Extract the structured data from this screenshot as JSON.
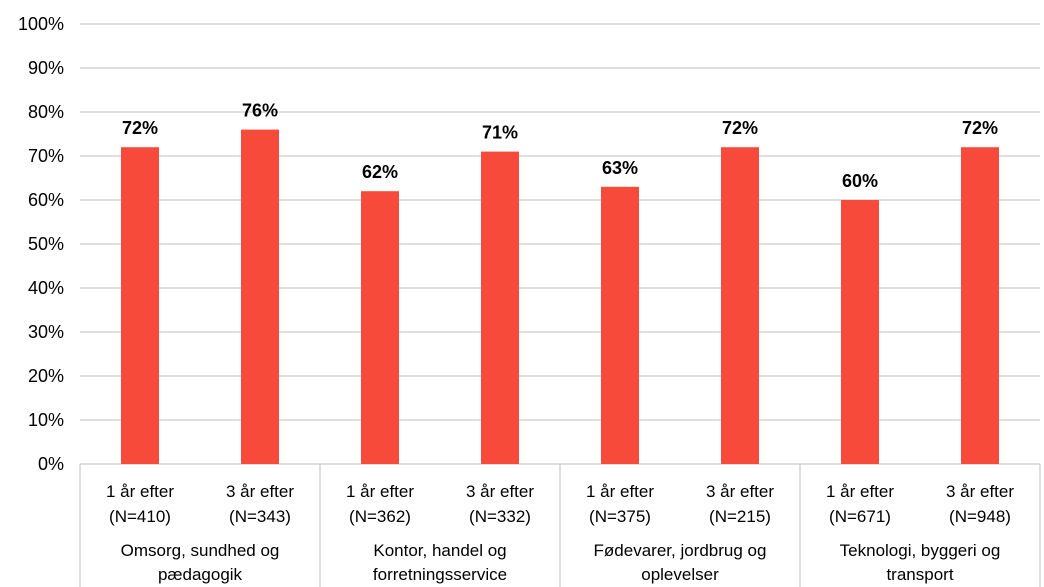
{
  "chart_data": {
    "type": "bar",
    "ylim": [
      0,
      100
    ],
    "y_ticks": [
      "0%",
      "10%",
      "20%",
      "30%",
      "40%",
      "50%",
      "60%",
      "70%",
      "80%",
      "90%",
      "100%"
    ],
    "grid": true,
    "bar_color": "#f84a3a",
    "grid_color": "#bfbfbf",
    "groups": [
      {
        "label": [
          "Omsorg, sundhed og",
          "pædagogik"
        ],
        "bars": [
          {
            "label": [
              "1 år efter",
              "(N=410)"
            ],
            "value": 72,
            "data_label": "72%"
          },
          {
            "label": [
              "3 år efter",
              "(N=343)"
            ],
            "value": 76,
            "data_label": "76%"
          }
        ]
      },
      {
        "label": [
          "Kontor, handel og",
          "forretningsservice"
        ],
        "bars": [
          {
            "label": [
              "1 år efter",
              "(N=362)"
            ],
            "value": 62,
            "data_label": "62%"
          },
          {
            "label": [
              "3 år efter",
              "(N=332)"
            ],
            "value": 71,
            "data_label": "71%"
          }
        ]
      },
      {
        "label": [
          "Fødevarer, jordbrug og",
          "oplevelser"
        ],
        "bars": [
          {
            "label": [
              "1 år efter",
              "(N=375)"
            ],
            "value": 63,
            "data_label": "63%"
          },
          {
            "label": [
              "3 år efter",
              "(N=215)"
            ],
            "value": 72,
            "data_label": "72%"
          }
        ]
      },
      {
        "label": [
          "Teknologi, byggeri og",
          "transport"
        ],
        "bars": [
          {
            "label": [
              "1 år efter",
              "(N=671)"
            ],
            "value": 60,
            "data_label": "60%"
          },
          {
            "label": [
              "3 år efter",
              "(N=948)"
            ],
            "value": 72,
            "data_label": "72%"
          }
        ]
      }
    ]
  }
}
